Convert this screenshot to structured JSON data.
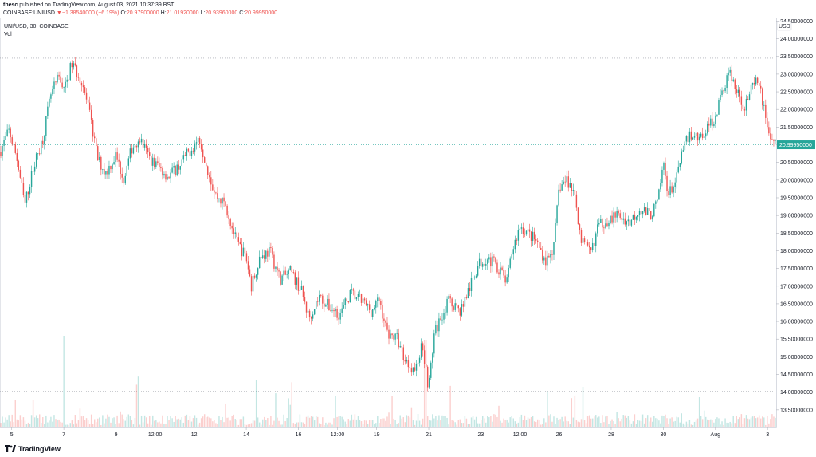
{
  "header": {
    "publisher": "thesc",
    "published_text": "published on TradingView.com, August 03, 2021 10:37:39 BST"
  },
  "ohlc_bar": {
    "symbol": "COINBASE:UNIUSD",
    "change_arrow": "▼",
    "change": "−1.38540000 (−6.19%)",
    "o_label": "O:",
    "o_value": "20.97900000",
    "h_label": "H:",
    "h_value": "21.01920000",
    "l_label": "L:",
    "l_value": "20.93960000",
    "c_label": "C:",
    "c_value": "20.99950000"
  },
  "legend": {
    "series": "UNI/USD, 30, COINBASE",
    "volume": "Vol"
  },
  "footer": {
    "brand": "TradingView",
    "logo_icon": "tradingview-logo-icon"
  },
  "chart_data": {
    "type": "candlestick",
    "symbol": "UNI/USD",
    "interval": "30",
    "exchange": "COINBASE",
    "currency_label": "USD",
    "y_ticks": [
      "13.50000000",
      "14.00000000",
      "14.50000000",
      "15.00000000",
      "15.50000000",
      "16.00000000",
      "16.50000000",
      "17.00000000",
      "17.50000000",
      "18.00000000",
      "18.50000000",
      "19.00000000",
      "19.50000000",
      "20.00000000",
      "20.50000000",
      "21.00000000",
      "21.50000000",
      "22.00000000",
      "22.50000000",
      "23.00000000",
      "23.50000000",
      "24.00000000",
      "24.50000000"
    ],
    "y_range": [
      13.0,
      24.6
    ],
    "x_ticks": [
      {
        "label": "5",
        "t": 5.0
      },
      {
        "label": "7",
        "t": 7.0
      },
      {
        "label": "9",
        "t": 9.0
      },
      {
        "label": "12:00",
        "t": 10.5
      },
      {
        "label": "12",
        "t": 12.0
      },
      {
        "label": "14",
        "t": 14.0
      },
      {
        "label": "16",
        "t": 16.0
      },
      {
        "label": "12:00",
        "t": 17.5
      },
      {
        "label": "19",
        "t": 19.0
      },
      {
        "label": "21",
        "t": 21.0
      },
      {
        "label": "23",
        "t": 23.0
      },
      {
        "label": "12:00",
        "t": 24.5
      },
      {
        "label": "26",
        "t": 26.0
      },
      {
        "label": "28",
        "t": 28.0
      },
      {
        "label": "30",
        "t": 30.0
      },
      {
        "label": "Aug",
        "t": 32.0
      },
      {
        "label": "3",
        "t": 34.0
      }
    ],
    "x_range": [
      4.55,
      34.33
    ],
    "last_price": "20.99950000",
    "last_price_value": 20.9995,
    "dotted_levels": [
      23.45,
      14.02
    ],
    "price_path": [
      [
        4.55,
        20.8
      ],
      [
        4.9,
        21.4
      ],
      [
        5.2,
        20.6
      ],
      [
        5.5,
        19.3
      ],
      [
        5.85,
        20.4
      ],
      [
        6.2,
        21.2
      ],
      [
        6.5,
        22.4
      ],
      [
        6.8,
        22.9
      ],
      [
        7.05,
        22.6
      ],
      [
        7.3,
        23.3
      ],
      [
        7.7,
        22.8
      ],
      [
        7.95,
        22.0
      ],
      [
        8.3,
        20.6
      ],
      [
        8.6,
        20.2
      ],
      [
        9.0,
        20.7
      ],
      [
        9.3,
        20.0
      ],
      [
        9.6,
        20.9
      ],
      [
        9.9,
        21.2
      ],
      [
        10.3,
        20.6
      ],
      [
        10.6,
        20.4
      ],
      [
        11.0,
        20.1
      ],
      [
        11.4,
        20.4
      ],
      [
        11.8,
        20.8
      ],
      [
        12.2,
        21.2
      ],
      [
        12.45,
        20.5
      ],
      [
        12.8,
        19.6
      ],
      [
        13.2,
        19.3
      ],
      [
        13.6,
        18.3
      ],
      [
        14.0,
        17.8
      ],
      [
        14.2,
        17.0
      ],
      [
        14.5,
        17.8
      ],
      [
        14.9,
        18.0
      ],
      [
        15.3,
        17.2
      ],
      [
        15.7,
        17.4
      ],
      [
        16.1,
        16.9
      ],
      [
        16.4,
        16.1
      ],
      [
        16.8,
        16.7
      ],
      [
        17.2,
        16.4
      ],
      [
        17.6,
        16.2
      ],
      [
        18.0,
        16.8
      ],
      [
        18.4,
        16.6
      ],
      [
        18.8,
        16.3
      ],
      [
        19.1,
        16.6
      ],
      [
        19.4,
        15.7
      ],
      [
        19.8,
        15.5
      ],
      [
        20.1,
        14.9
      ],
      [
        20.5,
        14.6
      ],
      [
        20.75,
        15.4
      ],
      [
        21.0,
        14.1
      ],
      [
        21.2,
        15.6
      ],
      [
        21.5,
        16.2
      ],
      [
        21.8,
        16.6
      ],
      [
        22.2,
        16.3
      ],
      [
        22.6,
        17.0
      ],
      [
        22.9,
        17.6
      ],
      [
        23.2,
        17.8
      ],
      [
        23.6,
        17.6
      ],
      [
        24.0,
        17.1
      ],
      [
        24.2,
        18.0
      ],
      [
        24.5,
        18.7
      ],
      [
        24.8,
        18.5
      ],
      [
        25.1,
        18.3
      ],
      [
        25.5,
        17.7
      ],
      [
        25.8,
        18.1
      ],
      [
        26.0,
        19.8
      ],
      [
        26.3,
        20.0
      ],
      [
        26.6,
        19.6
      ],
      [
        26.85,
        18.3
      ],
      [
        27.2,
        17.9
      ],
      [
        27.5,
        18.7
      ],
      [
        27.9,
        18.9
      ],
      [
        28.3,
        19.0
      ],
      [
        28.7,
        18.8
      ],
      [
        29.1,
        19.2
      ],
      [
        29.5,
        19.0
      ],
      [
        29.8,
        19.4
      ],
      [
        30.0,
        20.5
      ],
      [
        30.2,
        19.6
      ],
      [
        30.5,
        20.0
      ],
      [
        30.7,
        20.7
      ],
      [
        31.0,
        21.3
      ],
      [
        31.4,
        21.2
      ],
      [
        31.7,
        21.5
      ],
      [
        32.0,
        21.8
      ],
      [
        32.3,
        22.6
      ],
      [
        32.55,
        23.1
      ],
      [
        32.8,
        22.5
      ],
      [
        33.1,
        22.1
      ],
      [
        33.4,
        22.6
      ],
      [
        33.65,
        22.8
      ],
      [
        33.9,
        21.9
      ],
      [
        34.1,
        21.2
      ],
      [
        34.33,
        21.0
      ]
    ]
  }
}
